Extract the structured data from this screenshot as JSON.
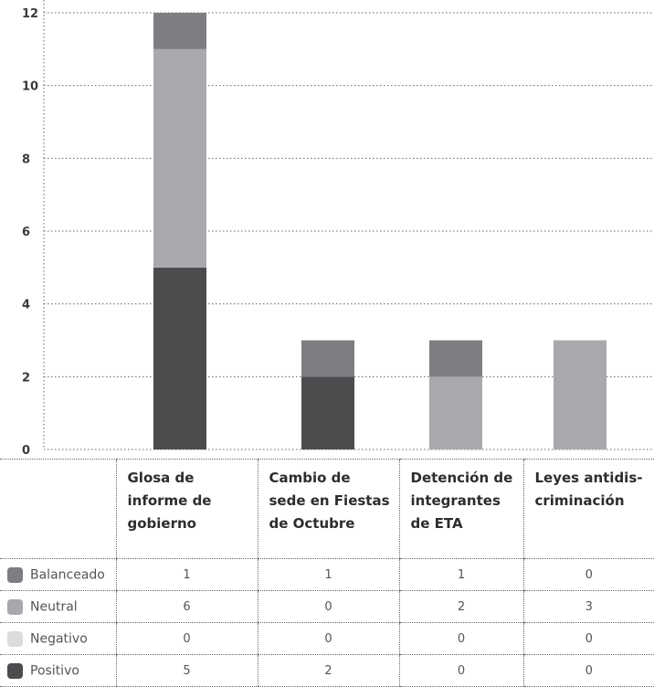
{
  "chart_data": {
    "type": "bar",
    "stacked": true,
    "categories": [
      [
        "Glosa de",
        "informe de",
        "gobierno"
      ],
      [
        "Cambio de",
        "sede en Fiestas",
        "de Octubre"
      ],
      [
        "Detención de",
        "integrantes",
        "de ETA"
      ],
      [
        "Leyes antidis-",
        "criminación"
      ]
    ],
    "series": [
      {
        "name": "Balanceado",
        "color": "#7d7e81",
        "values": [
          1,
          1,
          1,
          0
        ]
      },
      {
        "name": "Neutral",
        "color": "#a8a9ac",
        "values": [
          6,
          0,
          2,
          3
        ]
      },
      {
        "name": "Negativo",
        "color": "#dcdcdc",
        "values": [
          0,
          0,
          0,
          0
        ]
      },
      {
        "name": "Positivo",
        "color": "#4b4c4e",
        "values": [
          5,
          2,
          0,
          0
        ]
      }
    ],
    "stack_order_bottom_to_top": [
      "Positivo",
      "Negativo",
      "Neutral",
      "Balanceado"
    ],
    "ylim": [
      0,
      12
    ],
    "yticks": [
      0,
      2,
      4,
      6,
      8,
      10,
      12
    ],
    "grid": "horizontal-dotted",
    "legend": "table-below"
  }
}
